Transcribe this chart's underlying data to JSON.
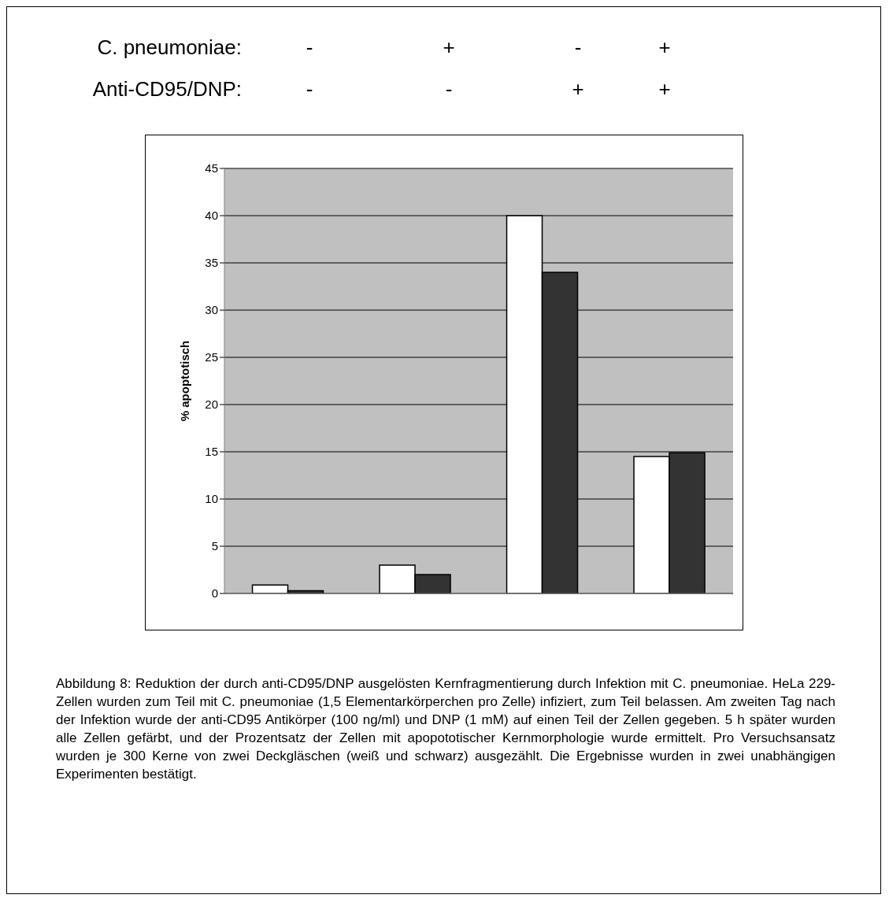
{
  "chart_data": {
    "type": "bar",
    "ylabel": "% apoptotisch",
    "categories": [
      null,
      null,
      null,
      null
    ],
    "series": [
      {
        "color": "#ffffff",
        "values": [
          0.9,
          3,
          40,
          14.5
        ]
      },
      {
        "color": "#333333",
        "values": [
          0.3,
          2,
          34,
          14.9
        ]
      }
    ],
    "ylim": [
      0,
      45
    ],
    "yticks": [
      0,
      5,
      10,
      15,
      20,
      25,
      30,
      35,
      40,
      45
    ],
    "grid": "y",
    "legend": false,
    "annotations": [
      "C. pneumoniae:",
      "-",
      "+",
      "-",
      "+",
      "Anti-CD95/DNP:",
      "-",
      "-",
      "+",
      "+",
      "Abbildung 8: Reduktion der durch anti-CD95/DNP ausgelösten Kernfragmentierung durch Infektion mit C. pneumoniae. HeLa 229-Zellen wurden zum Teil mit C. pneumoniae (1,5 Elementarkörperchen pro Zelle) infiziert, zum Teil belassen. Am zweiten Tag nach der Infektion wurde der anti-CD95 Antikörper (100 ng/ml) und DNP (1 mM) auf einen Teil der Zellen gegeben. 5 h später wurden alle Zellen gefärbt, und der Prozentsatz der Zellen mit apopototischer Kernmorphologie wurde ermittelt. Pro Versuchsansatz wurden je 300 Kerne von zwei Deckgläschen (weiß und schwarz) ausgezählt. Die Ergebnisse wurden in zwei unabhängigen Experimenten bestätigt."
    ]
  }
}
